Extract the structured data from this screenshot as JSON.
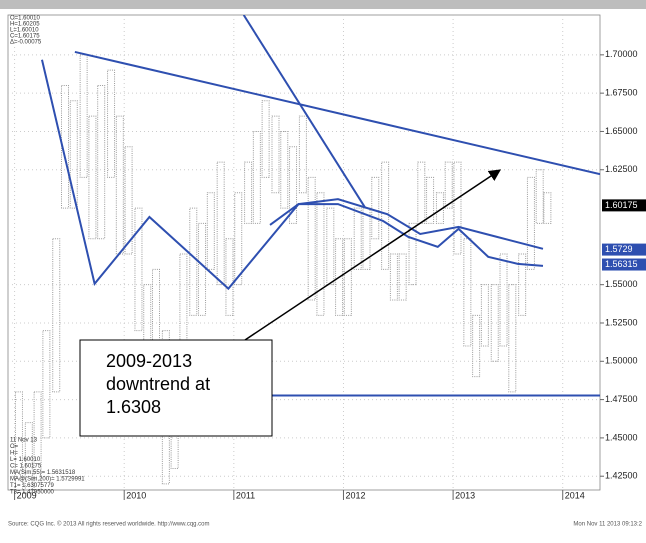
{
  "chart_data": {
    "type": "ohlc",
    "xlim": [
      2008.94,
      2014.34
    ],
    "ylim": [
      1.416,
      1.726
    ],
    "xticks": [
      2009,
      2010,
      2011,
      2012,
      2013,
      2014
    ],
    "yticks": [
      {
        "value": 1.7,
        "label": "1.70000"
      },
      {
        "value": 1.675,
        "label": "1.67500"
      },
      {
        "value": 1.65,
        "label": "1.65000"
      },
      {
        "value": 1.625,
        "label": "1.62500"
      },
      {
        "value": 1.55,
        "label": "1.55000"
      },
      {
        "value": 1.525,
        "label": "1.52500"
      },
      {
        "value": 1.5,
        "label": "1.50000"
      },
      {
        "value": 1.475,
        "label": "1.47500"
      },
      {
        "value": 1.45,
        "label": "1.45000"
      },
      {
        "value": 1.425,
        "label": "1.42500"
      }
    ],
    "grid": true,
    "bars": {
      "color": "#9a9a9a",
      "x": [
        2009.04,
        2009.13,
        2009.21,
        2009.29,
        2009.38,
        2009.46,
        2009.54,
        2009.63,
        2009.71,
        2009.79,
        2009.88,
        2009.96,
        2010.04,
        2010.13,
        2010.21,
        2010.29,
        2010.38,
        2010.46,
        2010.54,
        2010.63,
        2010.71,
        2010.79,
        2010.88,
        2010.96,
        2011.04,
        2011.13,
        2011.21,
        2011.29,
        2011.38,
        2011.46,
        2011.54,
        2011.63,
        2011.71,
        2011.79,
        2011.88,
        2011.96,
        2012.04,
        2012.13,
        2012.21,
        2012.29,
        2012.38,
        2012.46,
        2012.54,
        2012.63,
        2012.71,
        2012.79,
        2012.88,
        2012.96,
        2013.04,
        2013.13,
        2013.21,
        2013.29,
        2013.38,
        2013.46,
        2013.54,
        2013.63,
        2013.71,
        2013.79,
        2013.86
      ],
      "high": [
        1.48,
        1.46,
        1.48,
        1.52,
        1.58,
        1.68,
        1.67,
        1.7,
        1.66,
        1.68,
        1.69,
        1.66,
        1.64,
        1.6,
        1.55,
        1.56,
        1.52,
        1.51,
        1.57,
        1.6,
        1.59,
        1.61,
        1.63,
        1.58,
        1.61,
        1.63,
        1.65,
        1.67,
        1.66,
        1.65,
        1.64,
        1.66,
        1.62,
        1.61,
        1.6,
        1.58,
        1.58,
        1.6,
        1.6,
        1.62,
        1.63,
        1.57,
        1.57,
        1.59,
        1.63,
        1.62,
        1.61,
        1.63,
        1.63,
        1.58,
        1.53,
        1.55,
        1.55,
        1.57,
        1.55,
        1.57,
        1.62,
        1.625,
        1.61
      ],
      "low": [
        1.38,
        1.4,
        1.37,
        1.45,
        1.48,
        1.6,
        1.6,
        1.62,
        1.58,
        1.58,
        1.62,
        1.57,
        1.57,
        1.52,
        1.48,
        1.5,
        1.42,
        1.43,
        1.49,
        1.53,
        1.53,
        1.56,
        1.55,
        1.53,
        1.55,
        1.59,
        1.59,
        1.62,
        1.61,
        1.6,
        1.59,
        1.61,
        1.54,
        1.53,
        1.55,
        1.53,
        1.53,
        1.56,
        1.56,
        1.58,
        1.56,
        1.54,
        1.54,
        1.55,
        1.59,
        1.59,
        1.59,
        1.6,
        1.57,
        1.51,
        1.49,
        1.51,
        1.5,
        1.51,
        1.48,
        1.53,
        1.56,
        1.59,
        1.59
      ]
    },
    "series": [
      {
        "name": "MA(Sim,55)",
        "color": "#2e4fb0",
        "x": [
          2009.25,
          2009.73,
          2010.23,
          2010.95,
          2011.59,
          2011.95,
          2012.36,
          2012.59,
          2012.86,
          2013.05,
          2013.32,
          2013.59,
          2013.82
        ],
        "values": [
          1.6968,
          1.5506,
          1.5942,
          1.5474,
          1.6026,
          1.6026,
          1.5916,
          1.5812,
          1.5747,
          1.5864,
          1.5682,
          1.5636,
          1.5623
        ]
      },
      {
        "name": "MA@(Sim,200)",
        "color": "#2e4fb0",
        "x": [
          2011.33,
          2011.59,
          2011.95,
          2012.4,
          2012.7,
          2013.05,
          2013.4,
          2013.82
        ],
        "values": [
          1.589,
          1.6026,
          1.6058,
          1.596,
          1.5831,
          1.5877,
          1.5812,
          1.5734
        ]
      }
    ],
    "trend_lines": [
      {
        "color": "#2e4fb0",
        "x": [
          2009.55,
          2014.34
        ],
        "values": [
          1.7019,
          1.6221
        ]
      },
      {
        "color": "#2e4fb0",
        "x": [
          2011.09,
          2012.2
        ],
        "values": [
          1.726,
          1.6
        ]
      },
      {
        "color": "#2e4fb0",
        "x": [
          2011.32,
          2014.34
        ],
        "values": [
          1.4777,
          1.4777
        ]
      }
    ],
    "last_prices": [
      {
        "value": 1.60175,
        "color": "#000000"
      },
      {
        "value": 1.5729,
        "color": "#2e4fb0"
      },
      {
        "value": 1.56315,
        "color": "#2e4fb0"
      }
    ],
    "info_top": [
      "O=1.60010",
      "H=1.60205",
      "L=1.60010",
      "C=1.60175",
      "Δ=-0.00075"
    ],
    "info_bottom": [
      "11 Nov 13",
      "O=",
      "H=",
      "L=          1.60010",
      "C=          1.60175",
      "MA(Sim,55)=      1.5631518",
      "MA@(Sim,200)=   1.5729991",
      "T1=          1.63075779",
      "T3=          1.47950000"
    ],
    "annotation": [
      "2009-2013",
      "downtrend at",
      "1.6308"
    ],
    "source": "Source: CQG Inc. © 2013 All rights reserved worldwide. http://www.cqg.com",
    "timestamp": "Mon Nov 11 2013 09:13:2"
  }
}
